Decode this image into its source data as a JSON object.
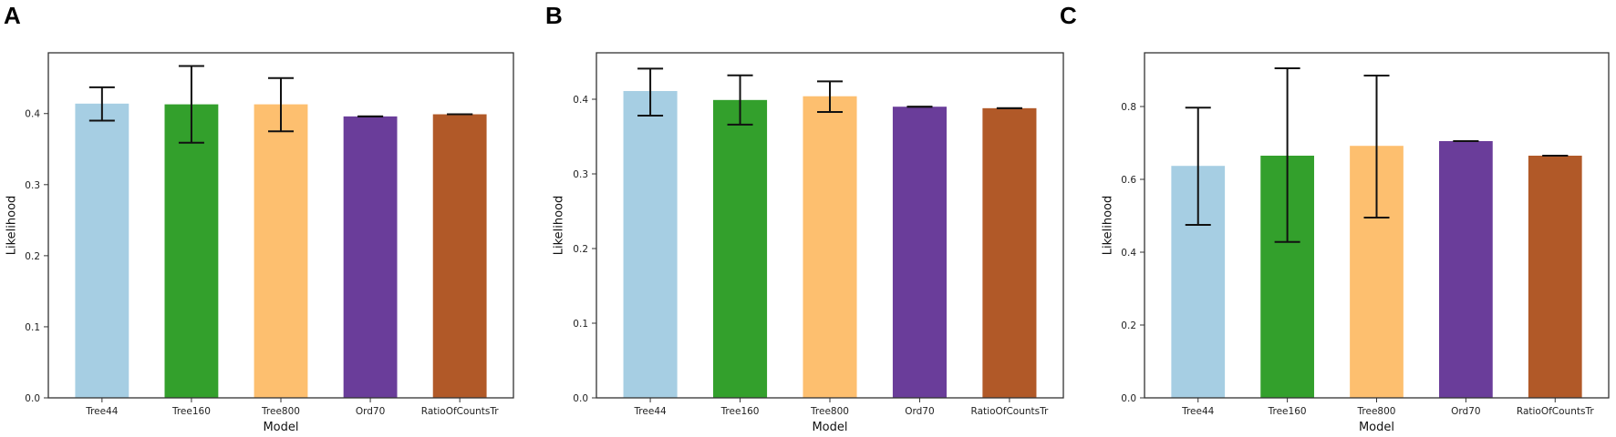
{
  "figure": {
    "panels": [
      {
        "letter": "A"
      },
      {
        "letter": "B"
      },
      {
        "letter": "C"
      }
    ]
  },
  "chart_data": [
    {
      "type": "bar",
      "panel": "A",
      "title": "",
      "xlabel": "Model",
      "ylabel": "Likelihood",
      "categories": [
        "Tree44",
        "Tree160",
        "Tree800",
        "Ord70",
        "RatioOfCountsTr"
      ],
      "values": [
        0.414,
        0.413,
        0.413,
        0.396,
        0.399
      ],
      "error_low": [
        0.39,
        0.359,
        0.375,
        0.396,
        0.399
      ],
      "error_high": [
        0.437,
        0.467,
        0.45,
        0.396,
        0.399
      ],
      "colors": [
        "#a6cee3",
        "#33a02c",
        "#fdbf6f",
        "#6a3d9a",
        "#b15928"
      ],
      "yticks": [
        0.0,
        0.1,
        0.2,
        0.3,
        0.4
      ],
      "ytick_labels": [
        "0.0",
        "0.1",
        "0.2",
        "0.3",
        "0.4"
      ],
      "ylim": [
        0.0,
        0.4855
      ],
      "grid": false,
      "legend": null
    },
    {
      "type": "bar",
      "panel": "B",
      "title": "",
      "xlabel": "Model",
      "ylabel": "Likelihood",
      "categories": [
        "Tree44",
        "Tree160",
        "Tree800",
        "Ord70",
        "RatioOfCountsTr"
      ],
      "values": [
        0.411,
        0.399,
        0.404,
        0.39,
        0.388
      ],
      "error_low": [
        0.378,
        0.366,
        0.383,
        0.39,
        0.388
      ],
      "error_high": [
        0.441,
        0.432,
        0.424,
        0.39,
        0.388
      ],
      "colors": [
        "#a6cee3",
        "#33a02c",
        "#fdbf6f",
        "#6a3d9a",
        "#b15928"
      ],
      "yticks": [
        0.0,
        0.1,
        0.2,
        0.3,
        0.4
      ],
      "ytick_labels": [
        "0.0",
        "0.1",
        "0.2",
        "0.3",
        "0.4"
      ],
      "ylim": [
        0.0,
        0.4622
      ],
      "grid": false,
      "legend": null
    },
    {
      "type": "bar",
      "panel": "C",
      "title": "",
      "xlabel": "Model",
      "ylabel": "Likelihood",
      "categories": [
        "Tree44",
        "Tree160",
        "Tree800",
        "Ord70",
        "RatioOfCountsTr"
      ],
      "values": [
        0.637,
        0.665,
        0.692,
        0.705,
        0.665
      ],
      "error_low": [
        0.475,
        0.428,
        0.495,
        0.705,
        0.665
      ],
      "error_high": [
        0.797,
        0.905,
        0.885,
        0.705,
        0.665
      ],
      "colors": [
        "#a6cee3",
        "#33a02c",
        "#fdbf6f",
        "#6a3d9a",
        "#b15928"
      ],
      "yticks": [
        0.0,
        0.2,
        0.4,
        0.6,
        0.8
      ],
      "ytick_labels": [
        "0.0",
        "0.2",
        "0.4",
        "0.6",
        "0.8"
      ],
      "ylim": [
        0.0,
        0.9475
      ],
      "grid": false,
      "legend": null
    }
  ]
}
